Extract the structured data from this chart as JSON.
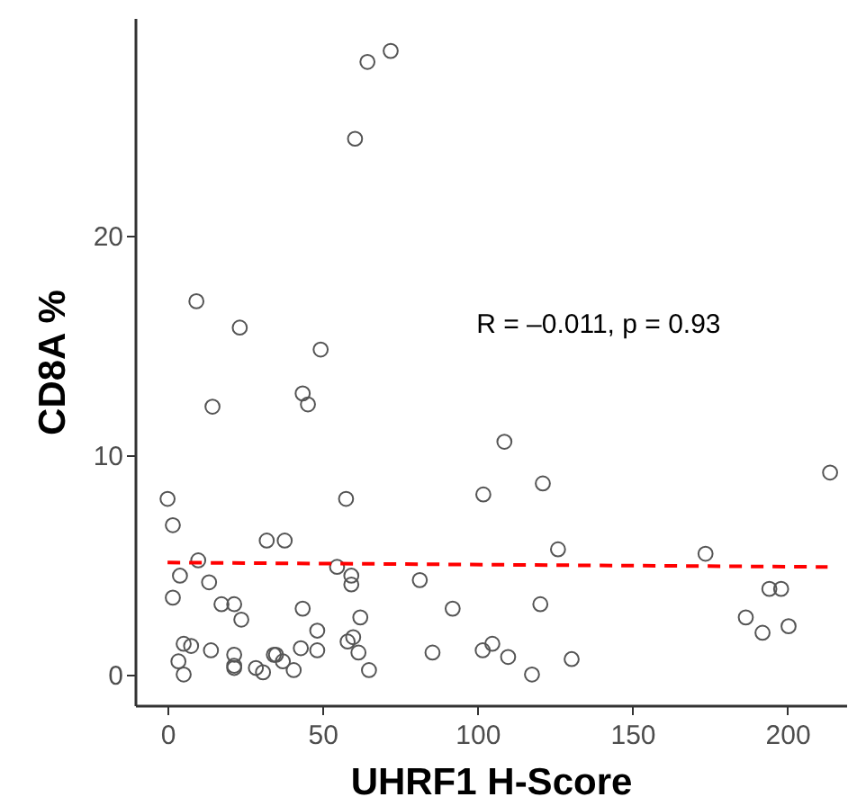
{
  "chart_data": {
    "type": "scatter",
    "xlabel": "UHRF1 H-Score",
    "ylabel": "CD8A %",
    "xlim": [
      -10.5,
      219
    ],
    "ylim": [
      -1.4,
      29.9
    ],
    "xticks": [
      0,
      50,
      100,
      150,
      200
    ],
    "yticks": [
      0,
      10,
      20
    ],
    "grid": false,
    "annotations": [
      "R = –0.011, p = 0.93"
    ],
    "series": [
      {
        "marker": "circle",
        "color": "#555555",
        "x": [
          72,
          64.5,
          60.5,
          9.3,
          23.3,
          49.4,
          14.5,
          43.6,
          45.3,
          0,
          1.7,
          57.6,
          32,
          37.8,
          9.9,
          4,
          1.7,
          13.4,
          54.7,
          59.3,
          59.3,
          17.4,
          21.5,
          23.8,
          43.6,
          48.3,
          62.2,
          81.4,
          92,
          5.2,
          7.6,
          14,
          21.5,
          34.3,
          35,
          43,
          48.3,
          58.1,
          59.9,
          61.6,
          3.5,
          5.2,
          21.5,
          21.5,
          28.5,
          30.8,
          37.2,
          40.7,
          65,
          85.5,
          108.7,
          101.9,
          121.1,
          126,
          173.6,
          213.8,
          120.3,
          194.2,
          198,
          186.6,
          192,
          200.4,
          101.7,
          104.8,
          109.9,
          117.6,
          130.4
        ],
        "values": [
          28.4,
          27.9,
          24.4,
          17.0,
          15.8,
          14.8,
          12.2,
          12.8,
          12.3,
          8.0,
          6.8,
          8.0,
          6.1,
          6.1,
          5.2,
          4.5,
          3.5,
          4.2,
          4.9,
          4.5,
          4.1,
          3.2,
          3.2,
          2.5,
          3.0,
          2.0,
          2.6,
          4.3,
          3.0,
          1.4,
          1.3,
          1.1,
          0.9,
          0.9,
          0.9,
          1.2,
          1.1,
          1.5,
          1.7,
          1.0,
          0.6,
          0.0,
          0.4,
          0.3,
          0.3,
          0.1,
          0.6,
          0.2,
          0.2,
          1.0,
          10.6,
          8.2,
          8.7,
          5.7,
          5.5,
          9.2,
          3.2,
          3.9,
          3.9,
          2.6,
          1.9,
          2.2,
          1.1,
          1.4,
          0.8,
          0.0,
          0.7
        ]
      },
      {
        "type": "line",
        "color": "#ff0000",
        "line_style": "dashed",
        "x": [
          0,
          213
        ],
        "values": [
          5.1,
          4.9
        ]
      }
    ]
  }
}
